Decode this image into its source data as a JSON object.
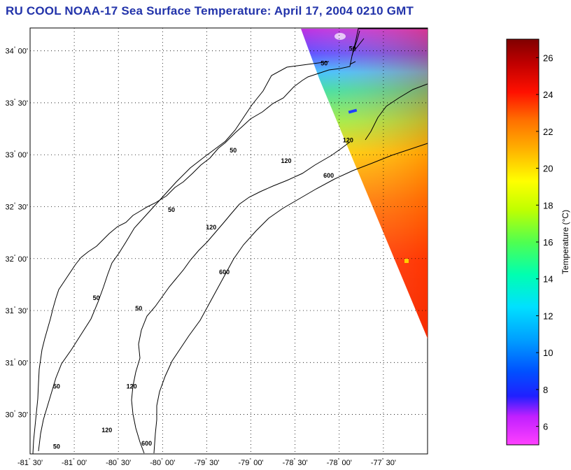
{
  "title": "RU COOL  NOAA-17  Sea Surface Temperature:  April 17, 2004 0210 GMT",
  "map": {
    "lon_range": [
      -81.5,
      -77.0
    ],
    "lat_range": [
      30.12,
      34.22
    ],
    "lon_ticks": [
      {
        "value": -81.5,
        "deg": "-81",
        "min": "30'"
      },
      {
        "value": -81.0,
        "deg": "-81",
        "min": "00'"
      },
      {
        "value": -80.5,
        "deg": "-80",
        "min": "30'"
      },
      {
        "value": -80.0,
        "deg": "-80",
        "min": "00'"
      },
      {
        "value": -79.5,
        "deg": "-79",
        "min": "30'"
      },
      {
        "value": -79.0,
        "deg": "-79",
        "min": "00'"
      },
      {
        "value": -78.5,
        "deg": "-78",
        "min": "30'"
      },
      {
        "value": -78.0,
        "deg": "-78",
        "min": "00'"
      },
      {
        "value": -77.5,
        "deg": "-77",
        "min": "30'"
      }
    ],
    "lat_ticks": [
      {
        "value": 34.0,
        "deg": "34",
        "min": "00'"
      },
      {
        "value": 33.5,
        "deg": "33",
        "min": "30'"
      },
      {
        "value": 33.0,
        "deg": "33",
        "min": "00'"
      },
      {
        "value": 32.5,
        "deg": "32",
        "min": "30'"
      },
      {
        "value": 32.0,
        "deg": "32",
        "min": "00'"
      },
      {
        "value": 31.5,
        "deg": "31",
        "min": "30'"
      },
      {
        "value": 31.0,
        "deg": "31",
        "min": "00'"
      },
      {
        "value": 30.5,
        "deg": "30",
        "min": "30'"
      }
    ],
    "degree_symbol": "°",
    "isobath_labels": [
      {
        "text": "50",
        "lon": -78.17,
        "lat": 33.86
      },
      {
        "text": "50",
        "lon": -77.85,
        "lat": 34.0
      },
      {
        "text": "120",
        "lon": -77.9,
        "lat": 33.12
      },
      {
        "text": "600",
        "lon": -78.12,
        "lat": 32.78
      },
      {
        "text": "50",
        "lon": -79.2,
        "lat": 33.02
      },
      {
        "text": "120",
        "lon": -78.6,
        "lat": 32.92
      },
      {
        "text": "50",
        "lon": -79.9,
        "lat": 32.45
      },
      {
        "text": "120",
        "lon": -79.45,
        "lat": 32.28
      },
      {
        "text": "600",
        "lon": -79.3,
        "lat": 31.85
      },
      {
        "text": "50",
        "lon": -80.75,
        "lat": 31.6
      },
      {
        "text": "50",
        "lon": -80.27,
        "lat": 31.5
      },
      {
        "text": "50",
        "lon": -81.2,
        "lat": 30.75
      },
      {
        "text": "120",
        "lon": -80.35,
        "lat": 30.75
      },
      {
        "text": "120",
        "lon": -80.63,
        "lat": 30.33
      },
      {
        "text": "600",
        "lon": -80.18,
        "lat": 30.2
      },
      {
        "text": "50",
        "lon": -81.2,
        "lat": 30.17
      }
    ]
  },
  "colorbar": {
    "label": "Temperature (°C)",
    "range": [
      5,
      27
    ],
    "ticks": [
      "6",
      "8",
      "10",
      "12",
      "14",
      "16",
      "18",
      "20",
      "22",
      "24",
      "26"
    ],
    "tick_values": [
      6,
      8,
      10,
      12,
      14,
      16,
      18,
      20,
      22,
      24,
      26
    ]
  }
}
